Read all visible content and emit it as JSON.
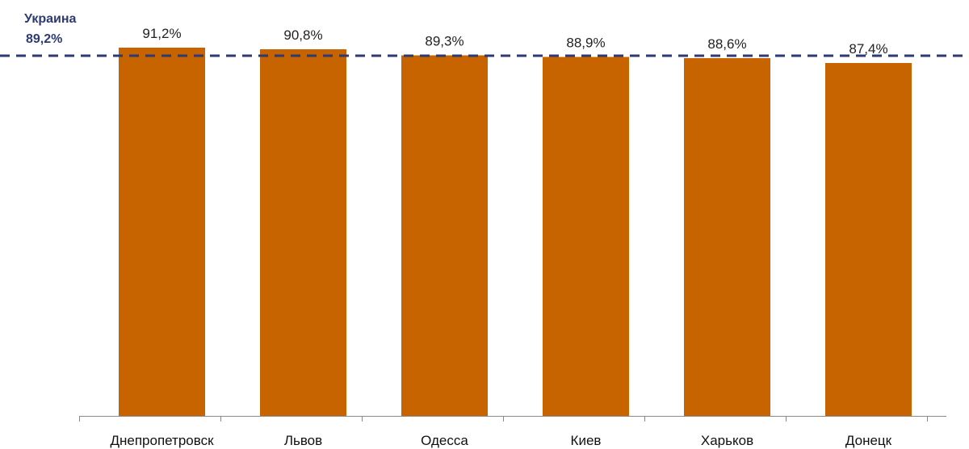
{
  "chart_data": {
    "type": "bar",
    "categories": [
      "Днепропетровск",
      "Львов",
      "Одесса",
      "Киев",
      "Харьков",
      "Донецк"
    ],
    "values": [
      91.2,
      90.8,
      89.3,
      88.9,
      88.6,
      87.4
    ],
    "value_labels": [
      "91,2%",
      "90,8%",
      "89,3%",
      "88,9%",
      "88,6%",
      "87,4%"
    ],
    "reference_line": {
      "label": "Украина",
      "value": 89.2,
      "value_label": "89,2%",
      "style": "dashed"
    },
    "title": "",
    "xlabel": "",
    "ylabel": "",
    "grid": false,
    "legend": "none"
  },
  "colors": {
    "bar": "#c86400",
    "reference_line": "#2d3a73",
    "axis": "#8a8a8a"
  }
}
